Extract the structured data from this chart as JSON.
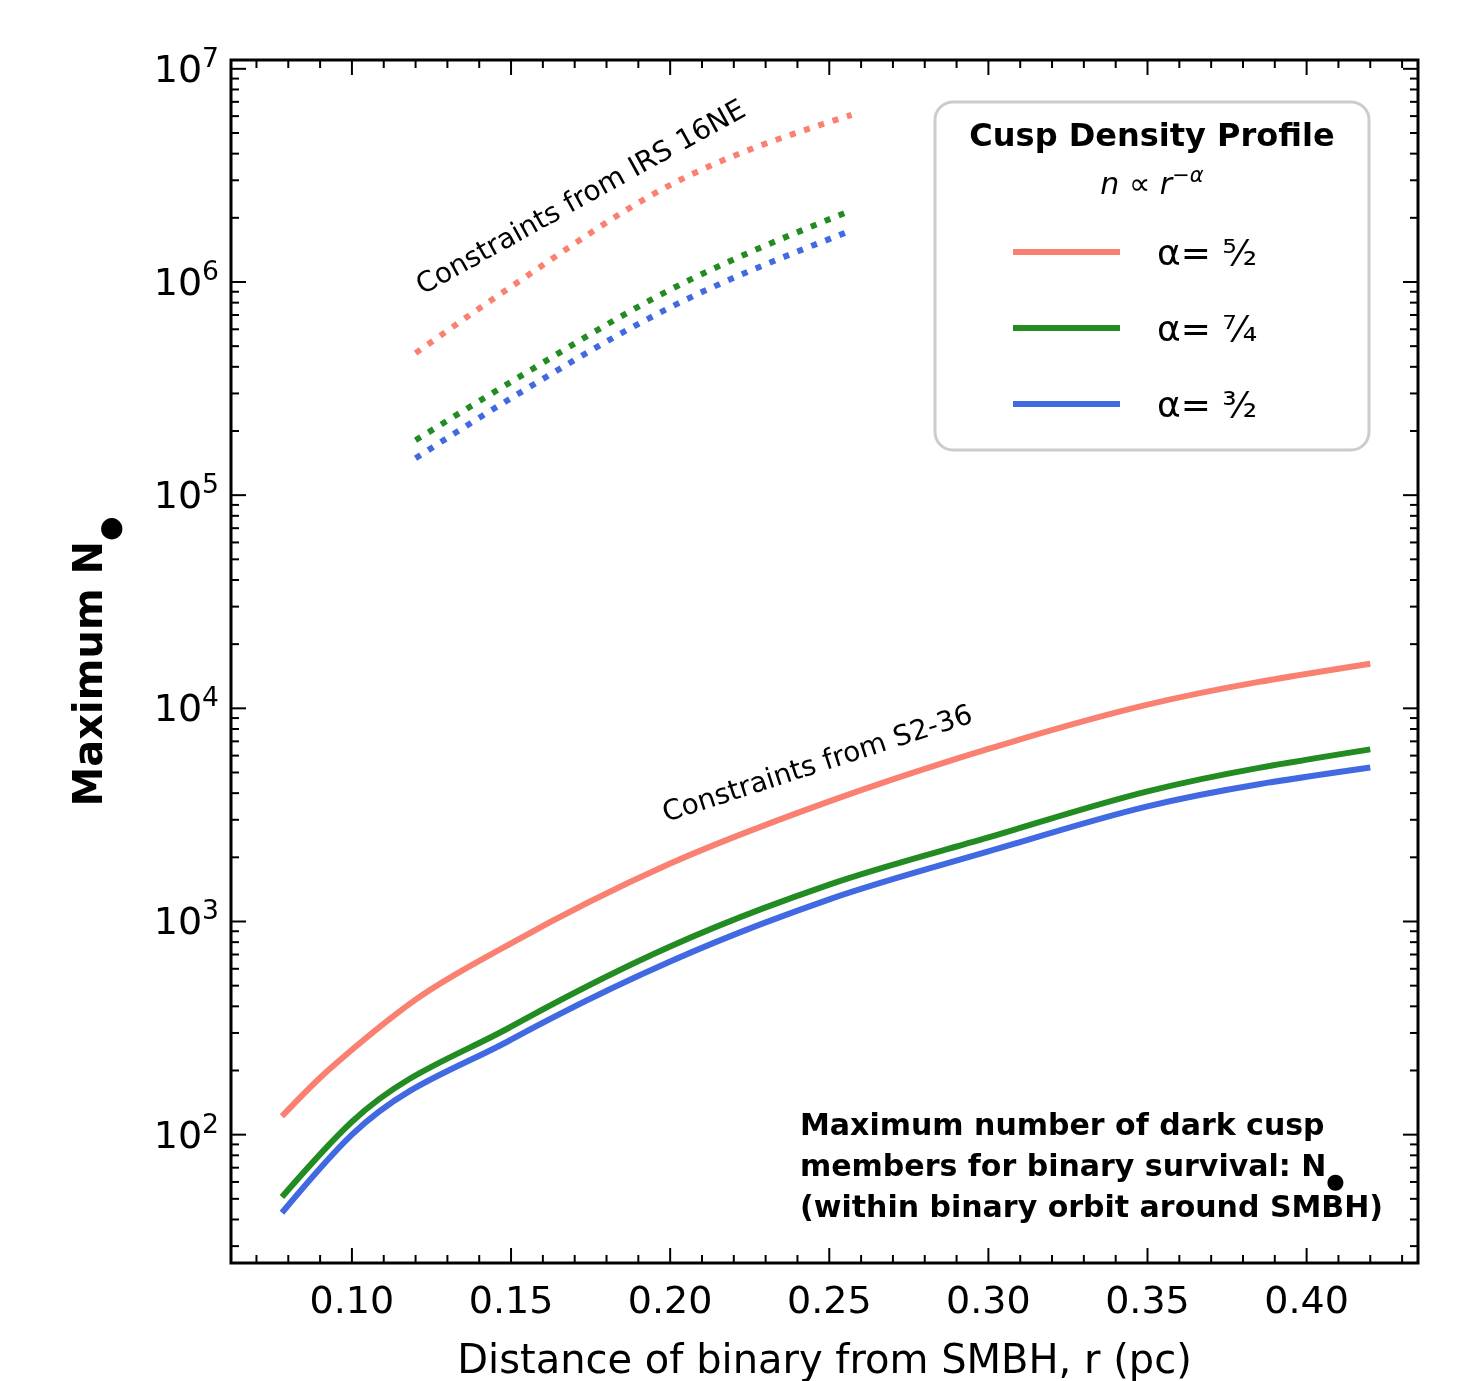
{
  "chart_data": {
    "type": "line",
    "xlabel": "Distance of binary from SMBH, r (pc)",
    "ylabel": "Maximum N$_{●}$",
    "log": "y",
    "grid": false,
    "legend": "top right",
    "legend_title": "Cusp Density Profile\nn ∝ r$^{−α}$",
    "xlim": [
      0.062,
      0.435
    ],
    "ylim": [
      25,
      11000000
    ],
    "xticks": [
      {
        "value": 0.07,
        "label": null
      },
      {
        "value": 0.08,
        "label": null
      },
      {
        "value": 0.09,
        "label": null
      },
      {
        "value": 0.1,
        "label": "0.10"
      },
      {
        "value": 0.11,
        "label": null
      },
      {
        "value": 0.12,
        "label": null
      },
      {
        "value": 0.13,
        "label": null
      },
      {
        "value": 0.14,
        "label": null
      },
      {
        "value": 0.15,
        "label": "0.15"
      },
      {
        "value": 0.16,
        "label": null
      },
      {
        "value": 0.17,
        "label": null
      },
      {
        "value": 0.18,
        "label": null
      },
      {
        "value": 0.19,
        "label": null
      },
      {
        "value": 0.2,
        "label": "0.20"
      },
      {
        "value": 0.21,
        "label": null
      },
      {
        "value": 0.22,
        "label": null
      },
      {
        "value": 0.23,
        "label": null
      },
      {
        "value": 0.24,
        "label": null
      },
      {
        "value": 0.25,
        "label": "0.25"
      },
      {
        "value": 0.26,
        "label": null
      },
      {
        "value": 0.27,
        "label": null
      },
      {
        "value": 0.28,
        "label": null
      },
      {
        "value": 0.29,
        "label": null
      },
      {
        "value": 0.3,
        "label": "0.30"
      },
      {
        "value": 0.31,
        "label": null
      },
      {
        "value": 0.32,
        "label": null
      },
      {
        "value": 0.33,
        "label": null
      },
      {
        "value": 0.34,
        "label": null
      },
      {
        "value": 0.35,
        "label": "0.35"
      },
      {
        "value": 0.36,
        "label": null
      },
      {
        "value": 0.37,
        "label": null
      },
      {
        "value": 0.38,
        "label": null
      },
      {
        "value": 0.39,
        "label": null
      },
      {
        "value": 0.4,
        "label": "0.40"
      },
      {
        "value": 0.41,
        "label": null
      },
      {
        "value": 0.42,
        "label": null
      },
      {
        "value": 0.43,
        "label": null
      }
    ],
    "yticks": [
      {
        "value": 30,
        "label": null
      },
      {
        "value": 40,
        "label": null
      },
      {
        "value": 50,
        "label": null
      },
      {
        "value": 60,
        "label": null
      },
      {
        "value": 70,
        "label": null
      },
      {
        "value": 80,
        "label": null
      },
      {
        "value": 90,
        "label": null
      },
      {
        "value": 100,
        "label": "10$^{2}$"
      },
      {
        "value": 200,
        "label": null
      },
      {
        "value": 300,
        "label": null
      },
      {
        "value": 400,
        "label": null
      },
      {
        "value": 500,
        "label": null
      },
      {
        "value": 600,
        "label": null
      },
      {
        "value": 700,
        "label": null
      },
      {
        "value": 800,
        "label": null
      },
      {
        "value": 900,
        "label": null
      },
      {
        "value": 1000,
        "label": "10$^{3}$"
      },
      {
        "value": 2000,
        "label": null
      },
      {
        "value": 3000,
        "label": null
      },
      {
        "value": 4000,
        "label": null
      },
      {
        "value": 5000,
        "label": null
      },
      {
        "value": 6000,
        "label": null
      },
      {
        "value": 7000,
        "label": null
      },
      {
        "value": 8000,
        "label": null
      },
      {
        "value": 9000,
        "label": null
      },
      {
        "value": 10000,
        "label": "10$^{4}$"
      },
      {
        "value": 20000,
        "label": null
      },
      {
        "value": 30000,
        "label": null
      },
      {
        "value": 40000,
        "label": null
      },
      {
        "value": 50000,
        "label": null
      },
      {
        "value": 60000,
        "label": null
      },
      {
        "value": 70000,
        "label": null
      },
      {
        "value": 80000,
        "label": null
      },
      {
        "value": 90000,
        "label": null
      },
      {
        "value": 100000,
        "label": "10$^{5}$"
      },
      {
        "value": 200000,
        "label": null
      },
      {
        "value": 300000,
        "label": null
      },
      {
        "value": 400000,
        "label": null
      },
      {
        "value": 500000,
        "label": null
      },
      {
        "value": 600000,
        "label": null
      },
      {
        "value": 700000,
        "label": null
      },
      {
        "value": 800000,
        "label": null
      },
      {
        "value": 900000,
        "label": null
      },
      {
        "value": 1000000,
        "label": "10$^{6}$"
      },
      {
        "value": 2000000,
        "label": null
      },
      {
        "value": 3000000,
        "label": null
      },
      {
        "value": 4000000,
        "label": null
      },
      {
        "value": 5000000,
        "label": null
      },
      {
        "value": 6000000,
        "label": null
      },
      {
        "value": 7000000,
        "label": null
      },
      {
        "value": 8000000,
        "label": null
      },
      {
        "value": 9000000,
        "label": null
      },
      {
        "value": 10000000,
        "label": "10$^{7}$"
      }
    ],
    "series": [
      {
        "name": "α= ⁵⁄₂",
        "color": "#fa8072",
        "line_style": "solid",
        "x": [
          0.078,
          0.09,
          0.1,
          0.12,
          0.15,
          0.2,
          0.25,
          0.3,
          0.35,
          0.42
        ],
        "values": [
          122,
          185,
          250,
          430,
          790,
          1870,
          3660,
          6450,
          10400,
          16200
        ]
      },
      {
        "name": "α= ⁷⁄₄",
        "color": "#228b22",
        "line_style": "solid",
        "x": [
          0.078,
          0.1,
          0.15,
          0.2,
          0.25,
          0.3,
          0.35,
          0.42
        ],
        "values": [
          51,
          115,
          321,
          763,
          1490,
          2480,
          4080,
          6420
        ]
      },
      {
        "name": "α= ³⁄₂",
        "color": "#4169e1",
        "line_style": "solid",
        "x": [
          0.078,
          0.1,
          0.15,
          0.2,
          0.25,
          0.3,
          0.35,
          0.42
        ],
        "values": [
          43,
          100,
          279,
          649,
          1270,
          2130,
          3470,
          5280
        ]
      },
      {
        "color": "#fa8072",
        "line_style": "dotted",
        "x": [
          0.12,
          0.15,
          0.2,
          0.257
        ],
        "values": [
          464000,
          950000,
          2850000,
          6080000
        ]
      },
      {
        "color": "#228b22",
        "line_style": "dotted",
        "x": [
          0.12,
          0.15,
          0.2,
          0.255
        ],
        "values": [
          181000,
          340000,
          920000,
          2110000
        ]
      },
      {
        "color": "#4169e1",
        "line_style": "dotted",
        "x": [
          0.12,
          0.15,
          0.2,
          0.255
        ],
        "values": [
          149000,
          285000,
          760000,
          1700000
        ]
      }
    ],
    "annotations": [
      "Constraints from IRS 16NE",
      "Constraints from S2-36",
      "Maximum number of dark cusp\nmembers for binary survival: N$_{●}$\n(within binary orbit around SMBH)"
    ]
  }
}
